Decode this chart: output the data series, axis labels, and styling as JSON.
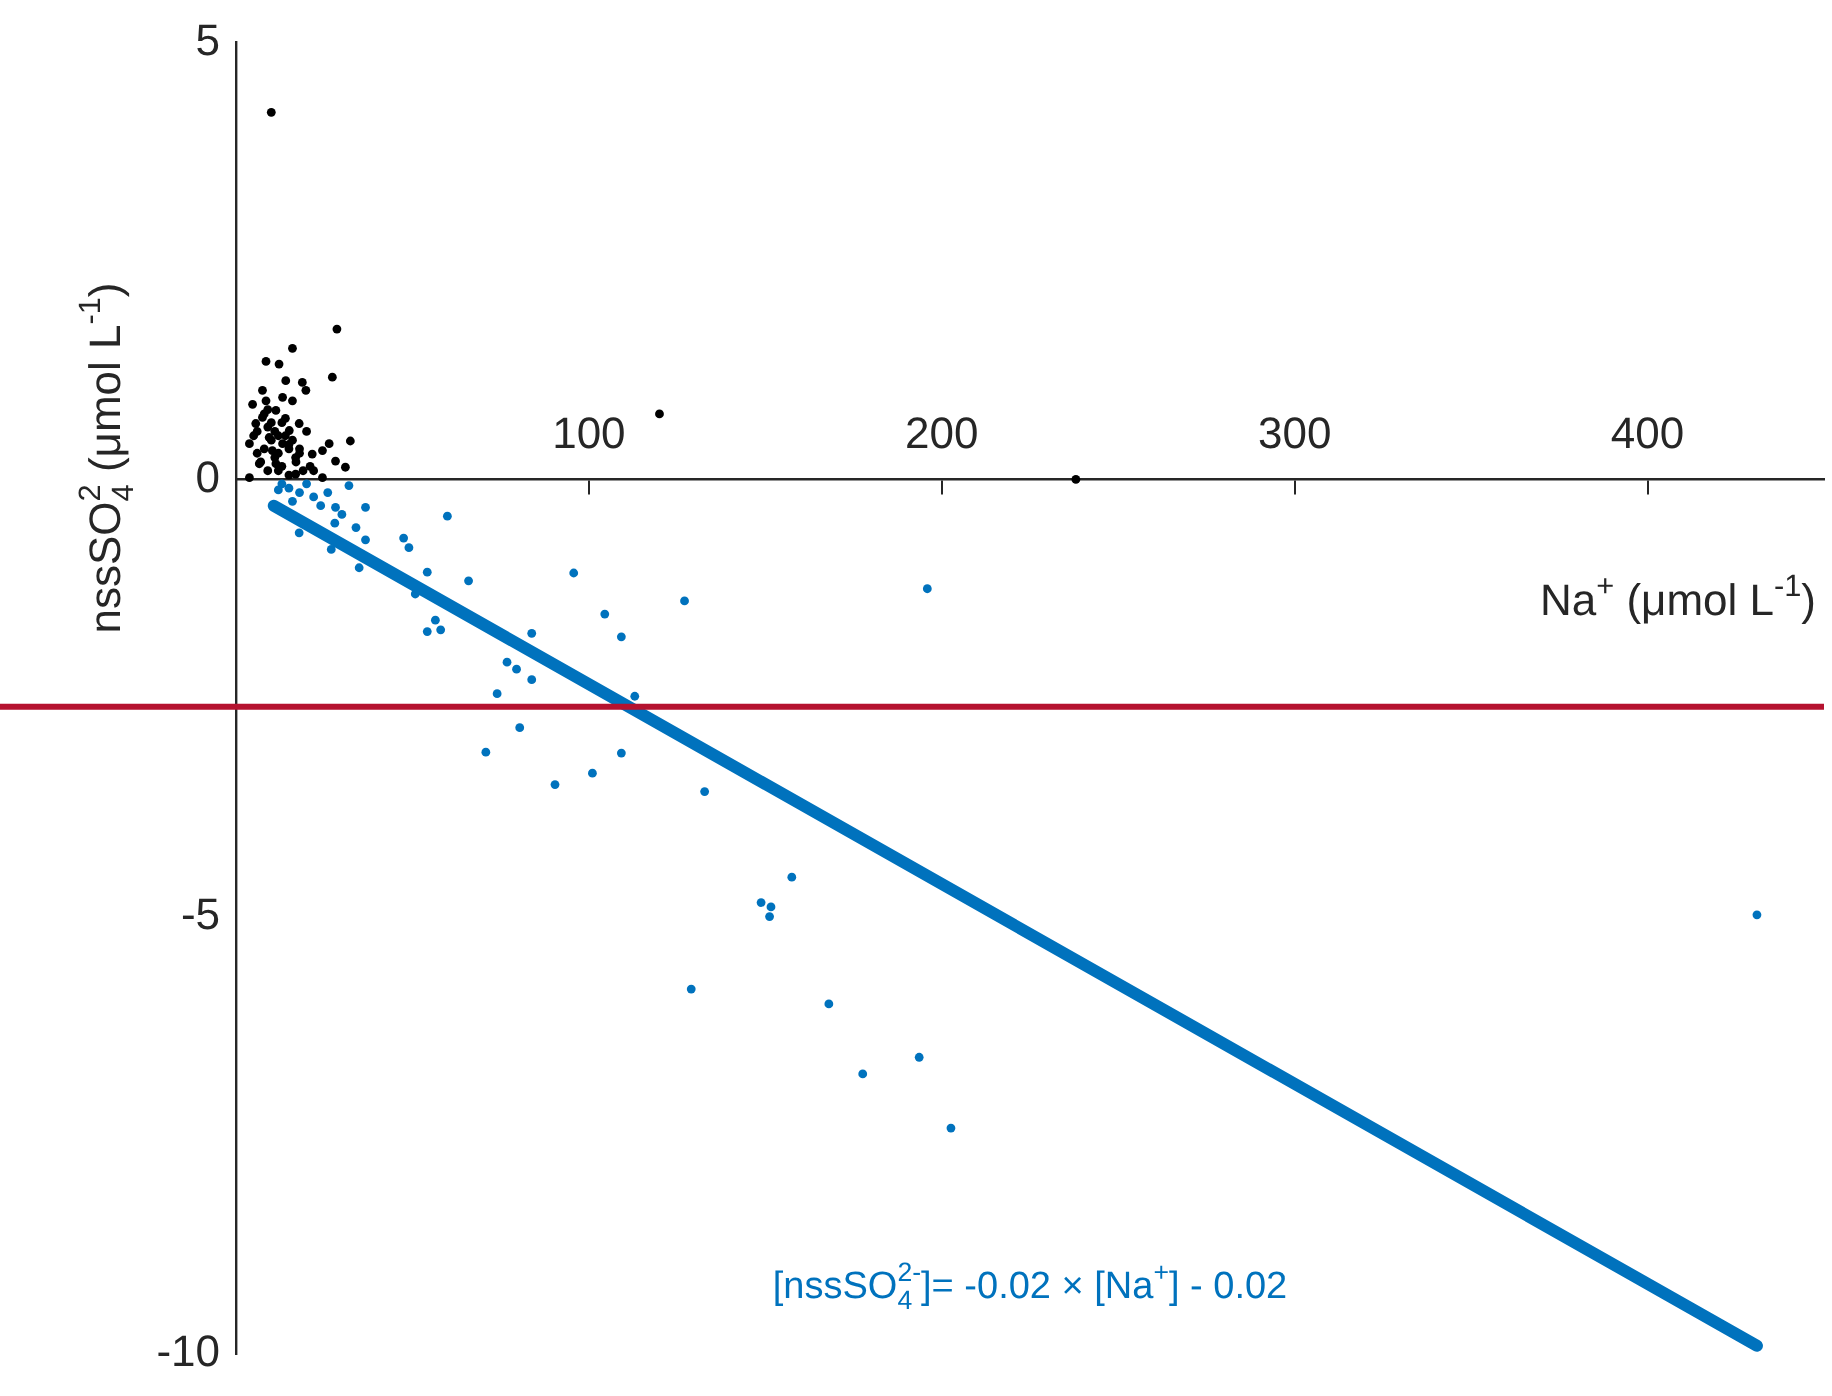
{
  "chart_data": {
    "type": "scatter",
    "xlabel": "Na$^{+}$ (μmol L$^{-1}$)",
    "ylabel": "nssSO$_{4}$$^{2}$ (μmol L$^{-1}$)",
    "xlim": [
      0,
      450
    ],
    "ylim": [
      -10,
      5
    ],
    "xticks": [
      100,
      200,
      300,
      400
    ],
    "yticks": [
      5,
      0,
      -5,
      -10
    ],
    "grid": false,
    "legend": false,
    "marker": "circle",
    "annotations": [
      "[nssSO$_{4}$$^{2-}$]= -0.02 × [Na$^{+}$] - 0.02"
    ],
    "ref_lines": [
      {
        "axis": "y",
        "value": -2.6,
        "color": "#b5122f"
      }
    ],
    "series": [
      {
        "color": "#000000",
        "x": [
          10,
          28.6,
          16,
          8.5,
          12.2,
          14.1,
          18.8,
          27.3,
          7.5,
          19.8,
          16,
          11.3,
          4.7,
          17.9,
          32.4,
          26.4,
          24.5,
          28.2,
          31,
          21.6,
          3.8,
          5.6,
          7.5,
          9.4,
          13.2,
          16.9,
          11.3,
          6.6,
          3.8,
          24.5,
          16.9,
          15.1,
          10.3,
          8.5,
          13.2,
          5,
          120,
          238,
          6,
          8,
          9,
          10,
          11,
          12,
          13,
          14,
          15,
          7,
          9,
          11,
          13,
          15,
          17,
          19,
          21,
          6,
          8,
          10,
          12,
          14,
          16,
          18,
          20,
          22,
          9,
          12,
          15,
          18
        ],
        "values": [
          4.2,
          1.72,
          1.5,
          1.35,
          1.32,
          1.13,
          1.11,
          1.17,
          1.02,
          1.02,
          0.9,
          0.79,
          0.86,
          0.64,
          0.44,
          0.41,
          0.33,
          0.21,
          0.14,
          0.29,
          0.41,
          0.64,
          0.71,
          0.48,
          0.41,
          0.25,
          0.18,
          0.18,
          0.02,
          0.02,
          0.06,
          0.56,
          0.33,
          0.9,
          0.94,
          0.5,
          0.75,
          0,
          0.3,
          0.35,
          0.6,
          0.45,
          0.55,
          0.3,
          0.65,
          0.5,
          0.4,
          0.2,
          0.1,
          0.25,
          0.15,
          0.35,
          0.2,
          0.1,
          0.15,
          0.55,
          0.75,
          0.65,
          0.5,
          0.7,
          0.45,
          0.3,
          0.55,
          0.1,
          0.8,
          0.1,
          0.05,
          0.35
        ]
      },
      {
        "color": "#0072bd",
        "x": [
          32,
          36.7,
          59.9,
          28.2,
          17.9,
          36.7,
          47.5,
          49,
          34.9,
          54.2,
          65.9,
          95.7,
          104.5,
          50.8,
          56.5,
          54.2,
          58,
          83.8,
          76.8,
          79.5,
          83.8,
          74,
          80.4,
          70.8,
          90.4,
          101,
          127.1,
          195.9,
          109.2,
          113,
          109.2,
          132.8,
          157.5,
          148.8,
          151.6,
          151.2,
          129,
          168,
          193.6,
          177.6,
          202.6,
          431,
          13,
          15,
          18,
          20,
          22,
          24,
          26,
          30,
          16,
          28,
          12,
          34,
          27
        ],
        "values": [
          -0.07,
          -0.32,
          -0.42,
          -0.32,
          -0.61,
          -0.69,
          -0.67,
          -0.78,
          -1.01,
          -1.06,
          -1.16,
          -1.07,
          -1.54,
          -1.31,
          -1.61,
          -1.74,
          -1.72,
          -1.76,
          -2.09,
          -2.17,
          -2.29,
          -2.45,
          -2.84,
          -3.12,
          -3.49,
          -3.36,
          -1.39,
          -1.25,
          -1.8,
          -2.48,
          -3.13,
          -3.57,
          -4.55,
          -4.84,
          -4.89,
          -5,
          -5.83,
          -6,
          -6.61,
          -6.8,
          -7.42,
          -4.98,
          -0.05,
          -0.1,
          -0.15,
          -0.05,
          -0.2,
          -0.3,
          -0.15,
          -0.4,
          -0.25,
          -0.5,
          -0.12,
          -0.55,
          -0.8
        ]
      },
      {
        "type": "line",
        "marker": "none",
        "color": "#0072bd",
        "x": [
          10.7,
          431
        ],
        "values": [
          -0.3,
          -9.91
        ]
      }
    ]
  }
}
